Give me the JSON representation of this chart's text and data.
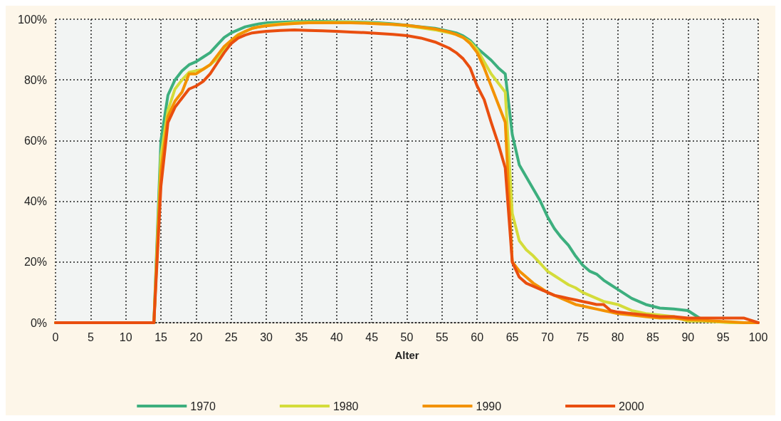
{
  "chart_data": {
    "type": "line",
    "xlabel": "Alter",
    "x": [
      0,
      14,
      15,
      16,
      17,
      18,
      19,
      20,
      21,
      22,
      23,
      24,
      25,
      26,
      27,
      28,
      29,
      30,
      32,
      34,
      36,
      38,
      40,
      42,
      44,
      46,
      48,
      50,
      52,
      54,
      56,
      57,
      58,
      59,
      60,
      61,
      62,
      63,
      64,
      65,
      66,
      67,
      68,
      69,
      70,
      71,
      72,
      73,
      74,
      75,
      76,
      77,
      78,
      79,
      80,
      82,
      84,
      86,
      88,
      90,
      92,
      94,
      96,
      98,
      100
    ],
    "series": [
      {
        "name": "1970",
        "color": "#3daf7e",
        "values": [
          0,
          0,
          60,
          75,
          80,
          83,
          85,
          86,
          87.5,
          89,
          91.5,
          94,
          95.5,
          96.5,
          97.5,
          98,
          98.5,
          98.8,
          99,
          99.2,
          99.3,
          99.3,
          99.2,
          99.1,
          99,
          98.8,
          98.5,
          98,
          97.5,
          97,
          96,
          95.5,
          94.5,
          93,
          90.5,
          88.5,
          86.5,
          84,
          82,
          62,
          52,
          48,
          44,
          40,
          35,
          31,
          28,
          25.5,
          22,
          19,
          17,
          16,
          14,
          12.5,
          11,
          8,
          6,
          4.8,
          4.5,
          4,
          1,
          null,
          null,
          null,
          null
        ]
      },
      {
        "name": "1980",
        "color": "#d4dc3a",
        "values": [
          0,
          0,
          55,
          70,
          77,
          80,
          82.5,
          83,
          83.5,
          85,
          87,
          90,
          93,
          95,
          96,
          97,
          97.5,
          98,
          98.5,
          98.8,
          99,
          99,
          99,
          99,
          98.8,
          98.6,
          98.3,
          97.8,
          97.2,
          96.5,
          95.5,
          95,
          94,
          92.5,
          90,
          86,
          82,
          79,
          76,
          36,
          27,
          24,
          22,
          19.5,
          17,
          15.5,
          14,
          12.5,
          11.5,
          10,
          9,
          8,
          7,
          6.5,
          6,
          4,
          3,
          2.5,
          2,
          0.5,
          0.5,
          0.3,
          0,
          0,
          0
        ]
      },
      {
        "name": "1990",
        "color": "#f39200",
        "values": [
          0,
          0,
          50,
          68,
          73,
          76,
          82,
          82,
          83.5,
          85,
          88,
          91,
          93,
          94.8,
          96,
          97,
          97.5,
          97.8,
          98.3,
          98.6,
          98.8,
          98.8,
          98.8,
          98.8,
          98.7,
          98.5,
          98.3,
          98,
          97.4,
          96.8,
          95.8,
          95,
          94,
          92,
          89,
          84,
          78,
          72,
          66,
          20,
          17,
          15,
          13,
          11.5,
          10,
          9,
          8,
          7,
          6,
          5.5,
          5,
          4.5,
          4,
          3.5,
          3,
          2.5,
          2,
          1.5,
          1.5,
          1,
          0.8,
          0.5,
          0.3,
          0,
          0
        ]
      },
      {
        "name": "2000",
        "color": "#e94e0f",
        "values": [
          0,
          0,
          45,
          66,
          71,
          74,
          77,
          78,
          79.5,
          82,
          85.5,
          89,
          92,
          93.8,
          94.8,
          95.5,
          95.8,
          96,
          96.3,
          96.5,
          96.3,
          96.2,
          96,
          95.8,
          95.6,
          95.3,
          95,
          94.6,
          93.8,
          92.5,
          90.5,
          89,
          87,
          84,
          78,
          73.5,
          66,
          59,
          51,
          20,
          15,
          13,
          12,
          11,
          10,
          9,
          8.5,
          8,
          7.5,
          7,
          6.5,
          6,
          6,
          4,
          3.5,
          3,
          2.5,
          2,
          2,
          1.5,
          1.5,
          1.5,
          1.5,
          1.5,
          0
        ]
      }
    ],
    "xlim": [
      0,
      100
    ],
    "xticks": [
      0,
      5,
      10,
      15,
      20,
      25,
      30,
      35,
      40,
      45,
      50,
      55,
      60,
      65,
      70,
      75,
      80,
      85,
      90,
      95,
      100
    ],
    "ylim": [
      0,
      100
    ],
    "yticks": [
      {
        "value": 0,
        "label": "0%"
      },
      {
        "value": 20,
        "label": "20%"
      },
      {
        "value": 40,
        "label": "40%"
      },
      {
        "value": 60,
        "label": "60%"
      },
      {
        "value": 80,
        "label": "80%"
      },
      {
        "value": 100,
        "label": "100%"
      }
    ],
    "grid": true,
    "legend": "bottom",
    "marker": "none",
    "line_style": "solid"
  }
}
